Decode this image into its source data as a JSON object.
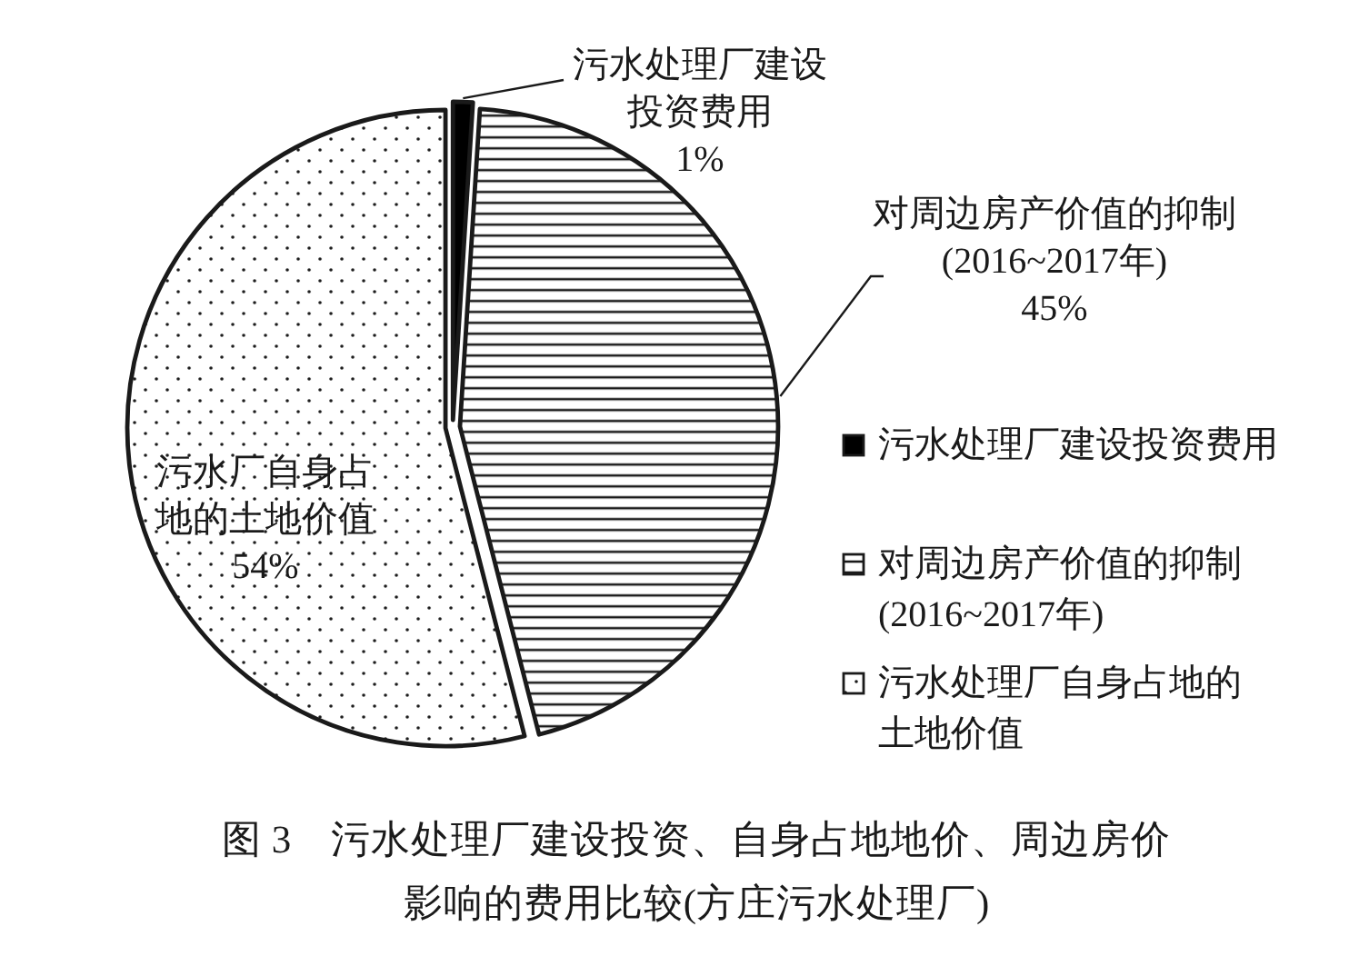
{
  "chart_data": {
    "type": "pie",
    "title": "图 3　污水处理厂建设投资、自身占地地价、周边房价影响的费用比较(方庄污水处理厂)",
    "categories": [
      "污水处理厂建设投资费用",
      "对周边房产价值的抑制(2016~2017年)",
      "污水处理厂自身占地的土地价值"
    ],
    "values": [
      1,
      45,
      54
    ],
    "colors": [
      "#000000",
      "#1a1a1a",
      "#1a1a1a"
    ],
    "value_labels": [
      "污水处理厂建设投资费用1%",
      "对周边房产价值的抑制(2016~2017年)45%",
      "污水厂自身占地的土地价值54%"
    ],
    "legend": "right"
  }
}
